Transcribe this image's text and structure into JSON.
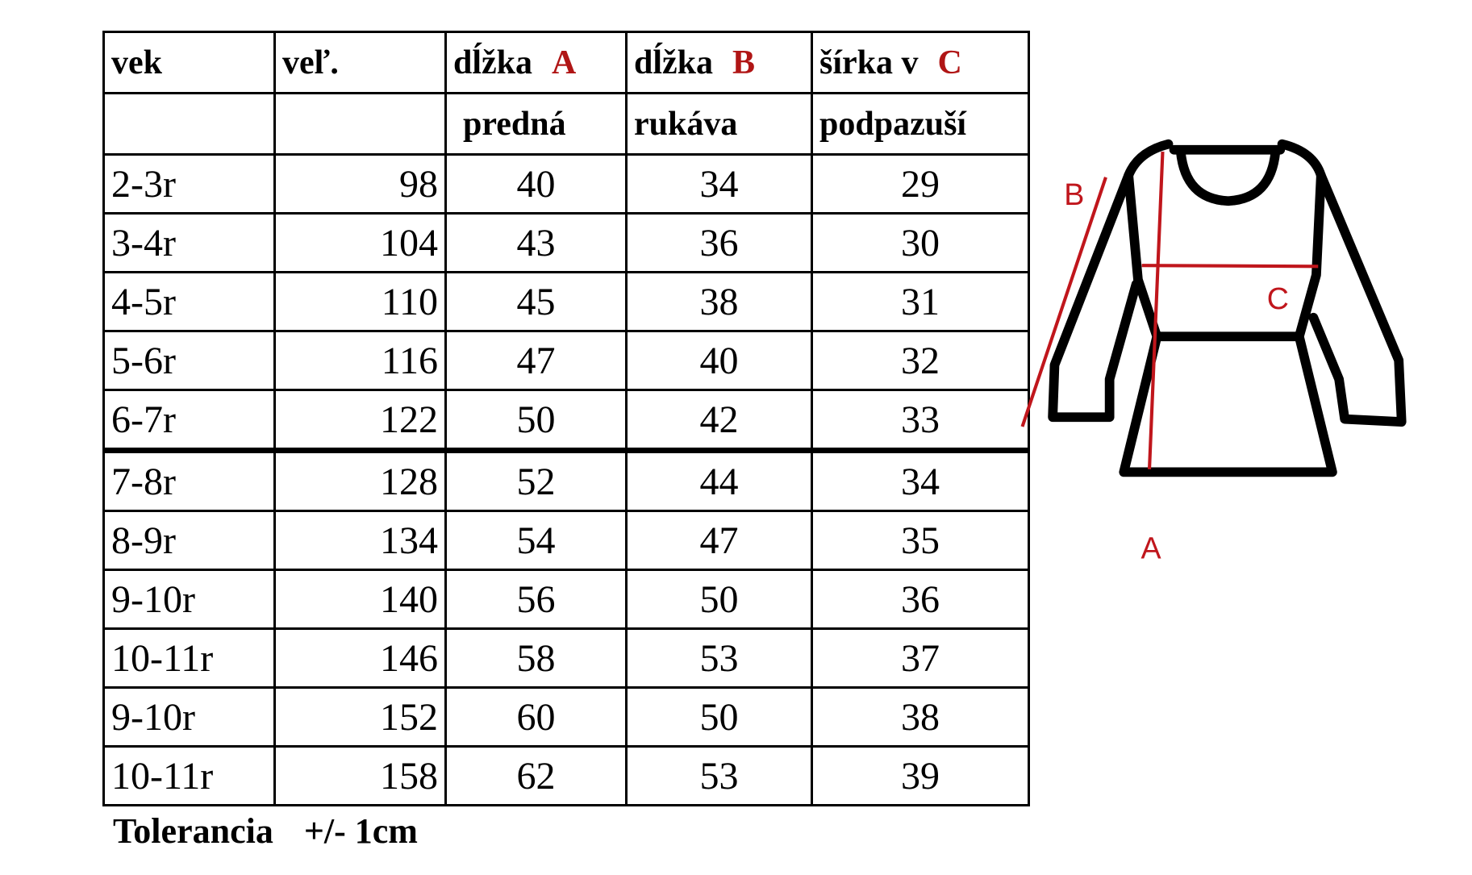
{
  "table": {
    "header1": [
      "vek",
      "veľ.",
      "dĺžka",
      "dĺžka",
      "šírka v"
    ],
    "header_letters": [
      "A",
      "B",
      "C"
    ],
    "header2": [
      "",
      "",
      "predná",
      "rukáva",
      "podpazuší"
    ],
    "rows": [
      [
        "2-3r",
        "98",
        "40",
        "34",
        "29"
      ],
      [
        "3-4r",
        "104",
        "43",
        "36",
        "30"
      ],
      [
        "4-5r",
        "110",
        "45",
        "38",
        "31"
      ],
      [
        "5-6r",
        "116",
        "47",
        "40",
        "32"
      ],
      [
        "6-7r",
        "122",
        "50",
        "42",
        "33"
      ],
      [
        "7-8r",
        "128",
        "52",
        "44",
        "34"
      ],
      [
        "8-9r",
        "134",
        "54",
        "47",
        "35"
      ],
      [
        "9-10r",
        "140",
        "56",
        "50",
        "36"
      ],
      [
        "10-11r",
        "146",
        "58",
        "53",
        "37"
      ],
      [
        "9-10r",
        "152",
        "60",
        "50",
        "38"
      ],
      [
        "10-11r",
        "158",
        "62",
        "53",
        "39"
      ]
    ]
  },
  "tolerance": {
    "label": "Tolerancia",
    "value": "+/- 1cm"
  },
  "diagram": {
    "labels": {
      "a": "A",
      "b": "B",
      "c": "C"
    },
    "measure_color": "#c0161c",
    "outline_color": "#000000"
  }
}
